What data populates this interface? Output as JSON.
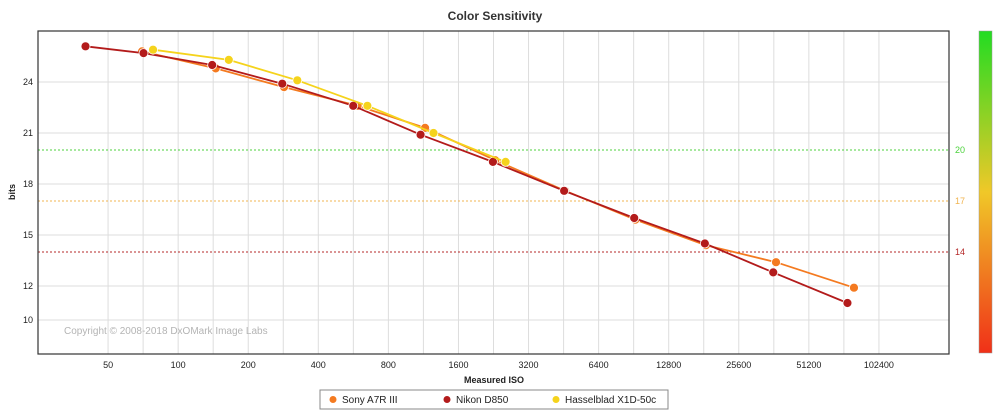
{
  "chart_data": {
    "type": "line",
    "title": "Color Sensitivity",
    "xlabel": "Measured ISO",
    "ylabel": "bits",
    "x_scale": "log2",
    "x_ticks": [
      "50",
      "100",
      "200",
      "400",
      "800",
      "1600",
      "3200",
      "6400",
      "12800",
      "25600",
      "51200",
      "102400"
    ],
    "y_ticks": [
      "24",
      "21",
      "18",
      "15",
      "12",
      "10"
    ],
    "xlim": [
      25,
      204800
    ],
    "ylim": [
      8,
      27
    ],
    "grid": true,
    "reference_lines": [
      {
        "label": "20",
        "value": 20,
        "color": "#4cd23c"
      },
      {
        "label": "17",
        "value": 17,
        "color": "#f0b450"
      },
      {
        "label": "14",
        "value": 14,
        "color": "#b42828"
      }
    ],
    "series": [
      {
        "name": "Sony A7R III",
        "color": "#f47a20",
        "x": [
          70,
          145,
          285,
          590,
          1150,
          2300,
          4600,
          9200,
          18500,
          37000,
          80000
        ],
        "y": [
          25.8,
          24.8,
          23.7,
          22.6,
          21.3,
          19.4,
          17.6,
          15.9,
          14.4,
          13.4,
          11.9
        ]
      },
      {
        "name": "Nikon D850",
        "color": "#b31b1b",
        "x": [
          40,
          71,
          140,
          280,
          565,
          1100,
          2250,
          4550,
          9100,
          18300,
          36000,
          75000
        ],
        "y": [
          26.1,
          25.7,
          25.0,
          23.9,
          22.6,
          20.9,
          19.3,
          17.6,
          16.0,
          14.5,
          12.8,
          11.0
        ]
      },
      {
        "name": "Hasselblad X1D-50c",
        "color": "#f5d31c",
        "x": [
          78,
          165,
          325,
          650,
          1250,
          2550
        ],
        "y": [
          25.9,
          25.3,
          24.1,
          22.6,
          21.0,
          19.3
        ]
      }
    ],
    "legend_position": "bottom-center",
    "copyright": "Copyright © 2008-2018 DxOMark Image Labs"
  }
}
